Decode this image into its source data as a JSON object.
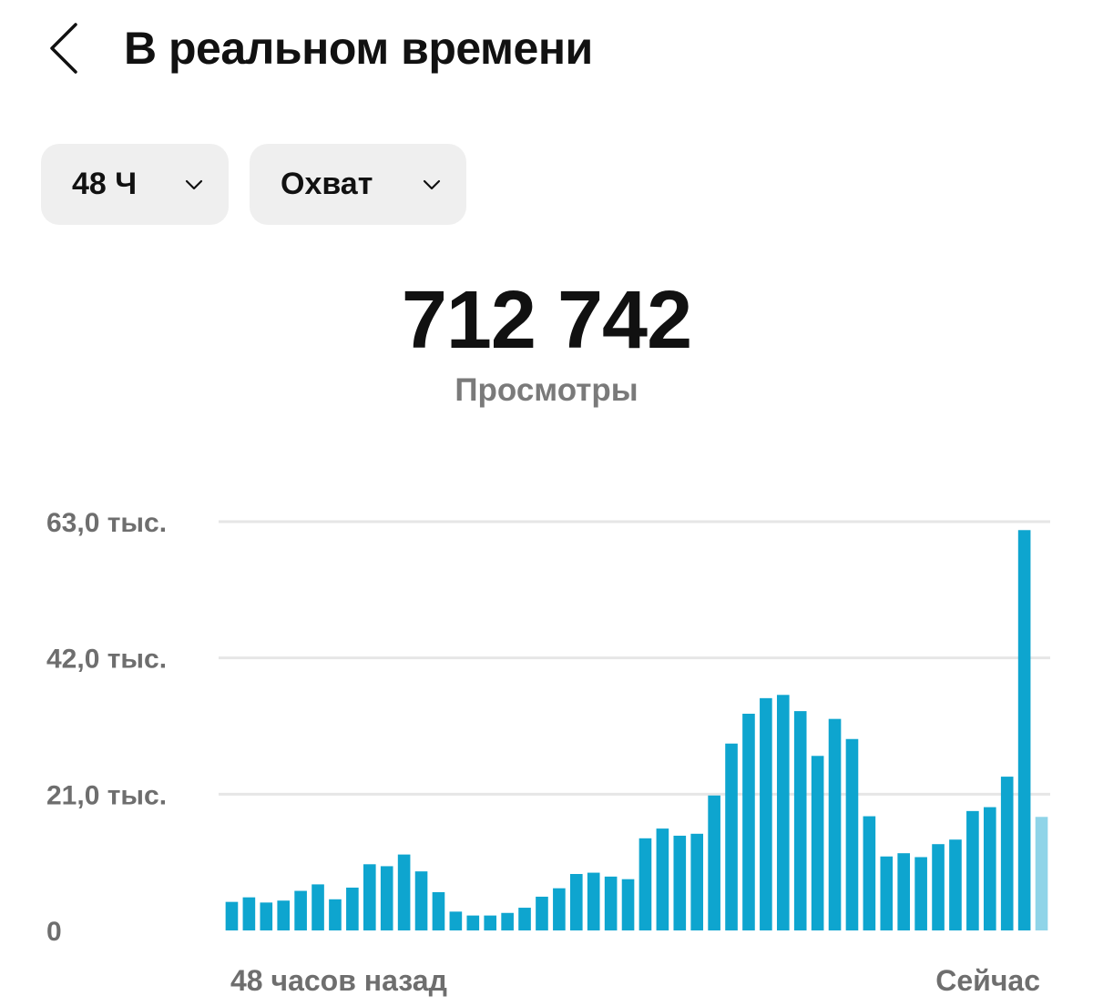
{
  "header": {
    "title": "В реальном времени",
    "back_icon": "chevron-left-icon"
  },
  "filters": {
    "time_range": "48 Ч",
    "metric": "Охват",
    "chevron_icon": "chevron-down-icon"
  },
  "summary": {
    "value": "712 742",
    "label": "Просмотры"
  },
  "colors": {
    "bar": "#0ea5cf",
    "bar_current": "#8fd4e8",
    "grid": "#e6e6e6",
    "pill_bg": "#efefef"
  },
  "chart_data": {
    "type": "bar",
    "title": "",
    "xlabel": "",
    "ylabel": "",
    "ylim": [
      0,
      63000
    ],
    "y_ticks": [
      {
        "value": 0,
        "label": "0"
      },
      {
        "value": 21000,
        "label": "21,0 тыс."
      },
      {
        "value": 42000,
        "label": "42,0 тыс."
      },
      {
        "value": 63000,
        "label": "63,0 тыс."
      }
    ],
    "x_labels": {
      "start": "48 часов назад",
      "end": "Сейчас"
    },
    "grid": true,
    "values": [
      4400,
      5100,
      4300,
      4600,
      6100,
      7100,
      4800,
      6600,
      10200,
      9900,
      11700,
      9100,
      5900,
      2900,
      2300,
      2300,
      2700,
      3500,
      5200,
      6500,
      8700,
      8900,
      8300,
      7900,
      14200,
      15700,
      14600,
      14900,
      20800,
      28800,
      33400,
      35800,
      36300,
      33800,
      26900,
      32600,
      29500,
      17600,
      11400,
      11900,
      11300,
      13300,
      14000,
      18400,
      19000,
      23700,
      61700,
      17500
    ],
    "current_partial_index": 47
  }
}
